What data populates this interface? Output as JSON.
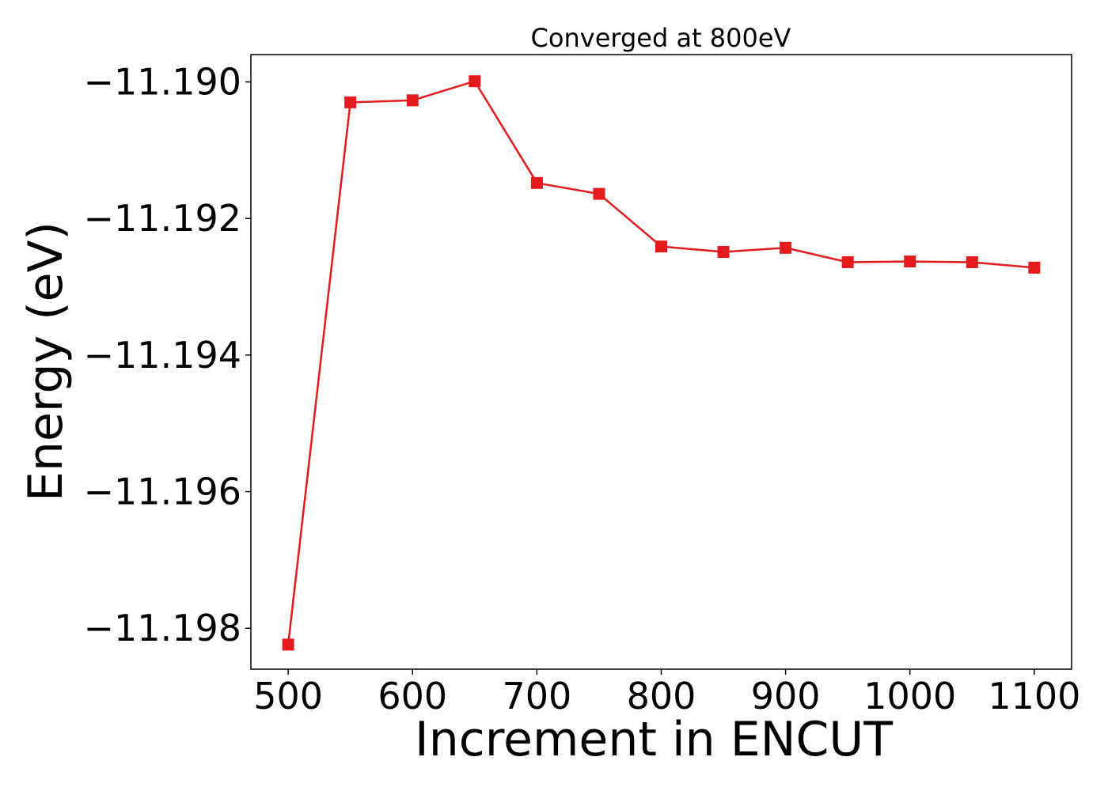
{
  "chart_data": {
    "type": "line",
    "title": "Converged at 800eV",
    "xlabel": "Increment in ENCUT",
    "ylabel": "Energy (eV)",
    "xlim": [
      470,
      1130
    ],
    "ylim": [
      -11.1986,
      -11.1896
    ],
    "x_ticks": [
      500,
      600,
      700,
      800,
      900,
      1000,
      1100
    ],
    "x_tick_labels": [
      "500",
      "600",
      "700",
      "800",
      "900",
      "1000",
      "1100"
    ],
    "y_ticks": [
      -11.19,
      -11.192,
      -11.194,
      -11.196,
      -11.198
    ],
    "y_tick_labels": [
      "−11.190",
      "−11.192",
      "−11.194",
      "−11.196",
      "−11.198"
    ],
    "grid": false,
    "series": [
      {
        "color": "#e41a1c",
        "marker": "square",
        "x": [
          500,
          550,
          600,
          650,
          700,
          750,
          800,
          850,
          900,
          950,
          1000,
          1050,
          1100
        ],
        "y": [
          -11.19824,
          -11.1903,
          -11.19027,
          -11.18999,
          -11.19148,
          -11.19164,
          -11.19241,
          -11.19249,
          -11.19243,
          -11.19264,
          -11.19263,
          -11.19264,
          -11.19272
        ]
      }
    ]
  }
}
